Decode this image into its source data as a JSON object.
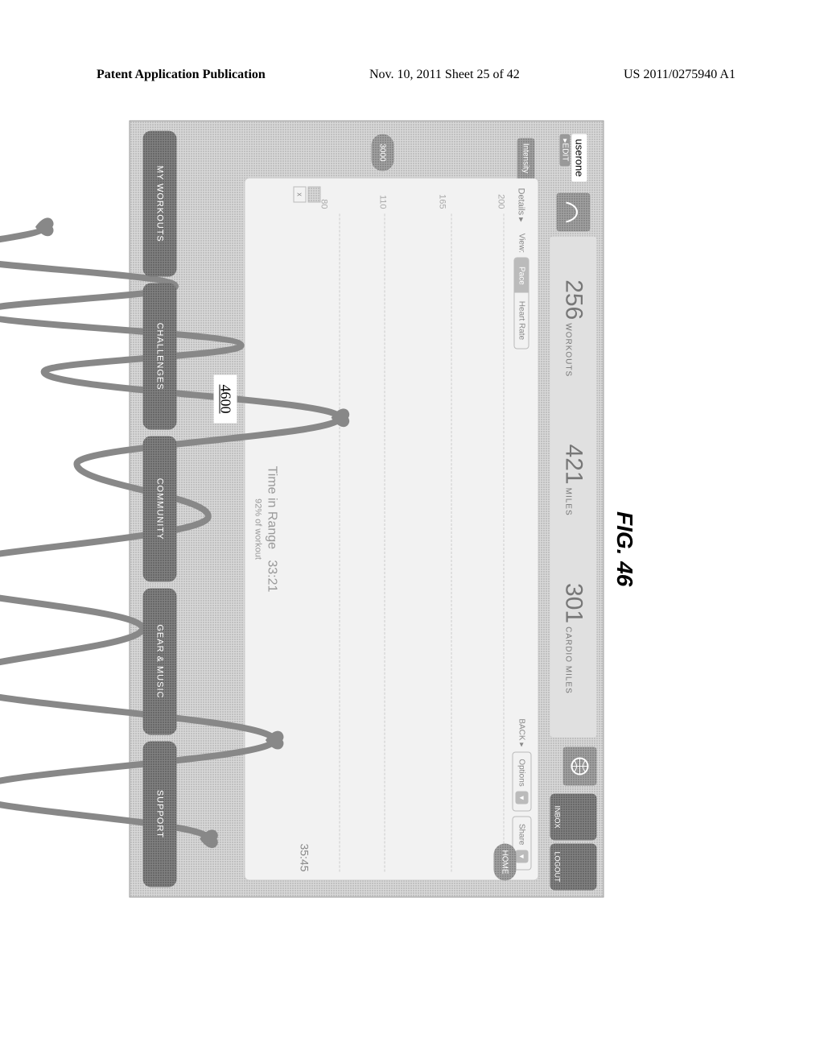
{
  "page_header": {
    "left": "Patent Application Publication",
    "center": "Nov. 10, 2011  Sheet 25 of 42",
    "right": "US 2011/0275940 A1"
  },
  "figure_label": "FIG. 46",
  "reference_number": "4600",
  "topbar": {
    "username": "userone",
    "edit_label": "▸EDIT",
    "stats": [
      {
        "value": "256",
        "label": "WORKOUTS"
      },
      {
        "value": "421",
        "label": "MILES"
      },
      {
        "value": "301",
        "label": "CARDIO MILES"
      }
    ],
    "right_pills": [
      {
        "label": "INBOX"
      },
      {
        "label": "LOGOUT"
      }
    ]
  },
  "card": {
    "tab_label": "Intensity",
    "details_label": "Details ▸",
    "view_label": "View:",
    "segments": [
      {
        "label": "Pace",
        "active": true
      },
      {
        "label": "Heart Rate",
        "active": false
      }
    ],
    "back_label": "BACK ▸",
    "options_label": "Options",
    "share_label": "Share",
    "y_ticks": [
      "200",
      "165",
      "110",
      "80"
    ],
    "x_end_label": "35:45",
    "legend": [
      "",
      "x"
    ],
    "time_in_range_label": "Time in Range",
    "time_in_range_value": "33:21",
    "pct_label": "92% of workout",
    "heart_rate_series": {
      "type": "line",
      "xlim": [
        0,
        100
      ],
      "ylim": [
        60,
        200
      ],
      "line_color": "#888888",
      "line_width": 8,
      "points": [
        [
          2,
          130
        ],
        [
          6,
          115
        ],
        [
          11,
          150
        ],
        [
          15,
          120
        ],
        [
          20,
          160
        ],
        [
          24,
          130
        ],
        [
          31,
          175
        ],
        [
          38,
          135
        ],
        [
          46,
          155
        ],
        [
          55,
          110
        ],
        [
          63,
          145
        ],
        [
          71,
          115
        ],
        [
          80,
          165
        ],
        [
          88,
          118
        ],
        [
          95,
          155
        ]
      ],
      "markers": [
        {
          "x": 2,
          "y": 130
        },
        {
          "x": 31,
          "y": 175
        },
        {
          "x": 80,
          "y": 165
        },
        {
          "x": 95,
          "y": 155
        }
      ],
      "marker_color": "#888888"
    }
  },
  "left_badge": "3000",
  "mid_badge": "HOME",
  "bottom_nav": [
    "MY WORKOUTS",
    "CHALLENGES",
    "COMMUNITY",
    "GEAR & MUSIC",
    "SUPPORT"
  ],
  "colors": {
    "screen_bg": "#cccccc",
    "card_bg": "#f2f2f2",
    "text_muted": "#888888",
    "pill_bg": "#909090",
    "nav_bg": "#909090"
  }
}
